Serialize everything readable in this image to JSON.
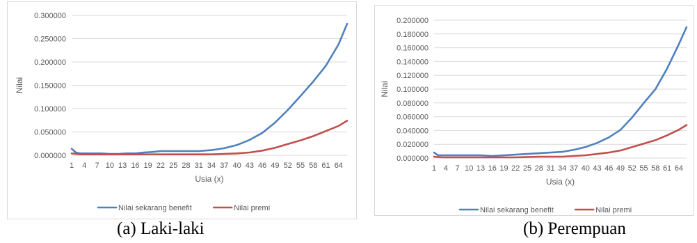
{
  "chart_data": [
    {
      "type": "line",
      "ylabel": "Nilai",
      "xlabel": "Usia (x)",
      "ylim": [
        0,
        0.3
      ],
      "y_ticks": [
        "0.000000",
        "0.050000",
        "0.100000",
        "0.150000",
        "0.200000",
        "0.250000",
        "0.300000"
      ],
      "x_ticks": [
        "1",
        "4",
        "7",
        "10",
        "13",
        "16",
        "19",
        "22",
        "25",
        "28",
        "31",
        "34",
        "37",
        "40",
        "43",
        "46",
        "49",
        "52",
        "55",
        "58",
        "61",
        "64"
      ],
      "x_range": [
        1,
        66
      ],
      "grid": true,
      "legend_position": "bottom",
      "series": [
        {
          "name": "Nilai sekarang benefit",
          "color": "#4f81bd",
          "x": [
            1,
            2,
            3,
            4,
            6,
            8,
            10,
            12,
            14,
            16,
            18,
            20,
            22,
            25,
            28,
            31,
            34,
            37,
            40,
            43,
            46,
            49,
            52,
            55,
            58,
            61,
            64,
            66
          ],
          "y": [
            0.014,
            0.006,
            0.004,
            0.004,
            0.004,
            0.004,
            0.003,
            0.003,
            0.004,
            0.004,
            0.006,
            0.007,
            0.009,
            0.009,
            0.009,
            0.009,
            0.011,
            0.015,
            0.022,
            0.033,
            0.048,
            0.07,
            0.097,
            0.127,
            0.158,
            0.192,
            0.238,
            0.282
          ]
        },
        {
          "name": "Nilai premi",
          "color": "#c0504d",
          "x": [
            1,
            3,
            10,
            16,
            22,
            28,
            34,
            37,
            40,
            43,
            46,
            49,
            52,
            55,
            58,
            61,
            64,
            66
          ],
          "y": [
            0.004,
            0.002,
            0.002,
            0.002,
            0.002,
            0.002,
            0.002,
            0.003,
            0.004,
            0.006,
            0.01,
            0.016,
            0.024,
            0.032,
            0.041,
            0.052,
            0.063,
            0.074
          ]
        }
      ]
    },
    {
      "type": "line",
      "ylabel": "Nilai",
      "xlabel": "Usia (x)",
      "ylim": [
        0,
        0.2
      ],
      "y_ticks": [
        "0.000000",
        "0.020000",
        "0.040000",
        "0.060000",
        "0.080000",
        "0.100000",
        "0.120000",
        "0.140000",
        "0.160000",
        "0.180000",
        "0.200000"
      ],
      "x_ticks": [
        "1",
        "4",
        "7",
        "10",
        "13",
        "16",
        "19",
        "22",
        "25",
        "28",
        "31",
        "34",
        "37",
        "40",
        "43",
        "46",
        "49",
        "52",
        "55",
        "58",
        "61",
        "64"
      ],
      "x_range": [
        1,
        66
      ],
      "grid": true,
      "legend_position": "bottom",
      "series": [
        {
          "name": "Nilai sekarang benefit",
          "color": "#4f81bd",
          "x": [
            1,
            2,
            3,
            4,
            7,
            10,
            13,
            16,
            19,
            22,
            25,
            28,
            31,
            34,
            37,
            40,
            43,
            46,
            49,
            52,
            55,
            58,
            61,
            64,
            66
          ],
          "y": [
            0.008,
            0.004,
            0.004,
            0.004,
            0.004,
            0.004,
            0.004,
            0.003,
            0.004,
            0.005,
            0.006,
            0.007,
            0.008,
            0.009,
            0.012,
            0.016,
            0.022,
            0.03,
            0.041,
            0.059,
            0.08,
            0.1,
            0.13,
            0.165,
            0.19
          ]
        },
        {
          "name": "Nilai premi",
          "color": "#c0504d",
          "x": [
            1,
            3,
            10,
            16,
            22,
            28,
            34,
            37,
            40,
            43,
            46,
            49,
            52,
            55,
            58,
            61,
            64,
            66
          ],
          "y": [
            0.002,
            0.001,
            0.001,
            0.001,
            0.001,
            0.002,
            0.002,
            0.003,
            0.004,
            0.006,
            0.008,
            0.011,
            0.016,
            0.021,
            0.026,
            0.033,
            0.041,
            0.048
          ]
        }
      ]
    }
  ],
  "captions": {
    "a": "(a)  Laki-laki",
    "b": "(b) Perempuan"
  }
}
